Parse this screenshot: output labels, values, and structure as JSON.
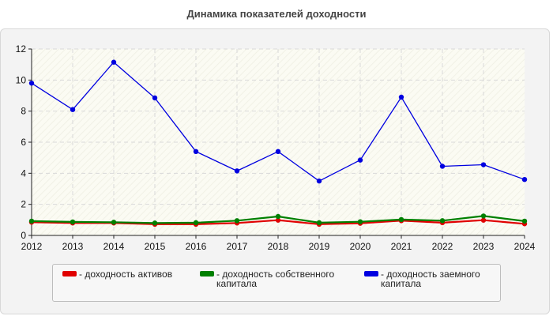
{
  "title": "Динамика показателей доходности",
  "colors": {
    "background": "#f3f3f3",
    "plot": "#fbfbf3",
    "grid": "#d9d9d9"
  },
  "chart_data": {
    "type": "line",
    "title": "Динамика показателей доходности",
    "xlabel": "",
    "ylabel": "",
    "x": [
      "2012",
      "2013",
      "2014",
      "2015",
      "2016",
      "2017",
      "2018",
      "2019",
      "2020",
      "2021",
      "2022",
      "2023",
      "2024"
    ],
    "ylim": [
      0,
      12
    ],
    "yticks": [
      "0",
      "2",
      "4",
      "6",
      "8",
      "10",
      "12"
    ],
    "grid": true,
    "legend_position": "bottom",
    "series": [
      {
        "name": "- доходность активов",
        "color": "#e00000",
        "values": [
          0.85,
          0.8,
          0.8,
          0.72,
          0.72,
          0.8,
          0.98,
          0.72,
          0.78,
          0.95,
          0.82,
          0.98,
          0.75
        ]
      },
      {
        "name": "- доходность собственного капитала",
        "color": "#008000",
        "values": [
          0.92,
          0.87,
          0.85,
          0.8,
          0.82,
          0.95,
          1.22,
          0.82,
          0.88,
          1.02,
          0.95,
          1.25,
          0.92
        ]
      },
      {
        "name": "- доходность заемного капитала",
        "color": "#0000e0",
        "values": [
          9.8,
          8.1,
          11.15,
          8.85,
          5.4,
          4.15,
          5.4,
          3.5,
          4.85,
          8.9,
          4.45,
          4.55,
          3.6
        ]
      }
    ]
  }
}
